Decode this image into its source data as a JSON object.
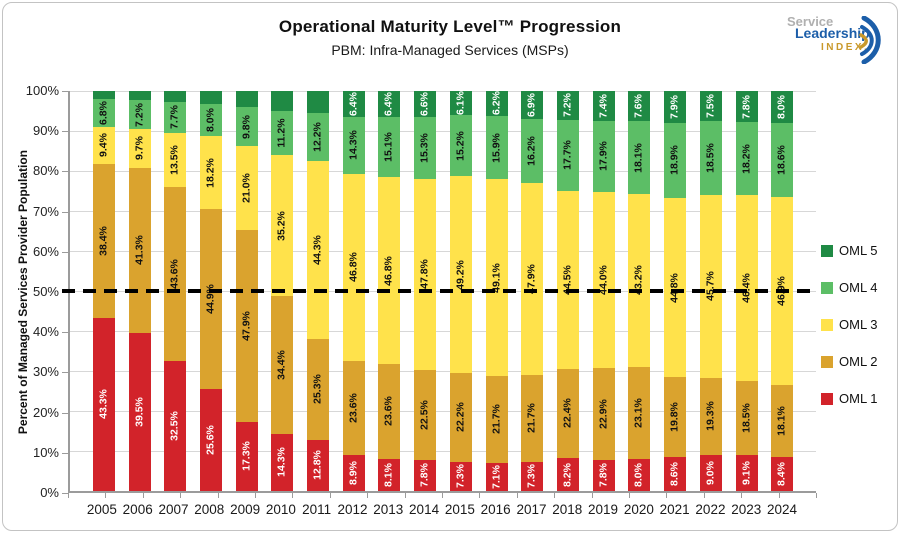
{
  "logo": {
    "service": "Service",
    "leadership": "Leadership",
    "index": "INDEX."
  },
  "chart_data": {
    "type": "bar",
    "stacked": true,
    "orientation": "vertical",
    "title": "Operational Maturity Level™ Progression",
    "subtitle": "PBM: Infra-Managed Services (MSPs)",
    "ylabel": "Percent of Managed Services Provider Population",
    "ylim": [
      0,
      100
    ],
    "grid": true,
    "yticks": [
      0,
      10,
      20,
      30,
      40,
      50,
      60,
      70,
      80,
      90,
      100
    ],
    "ytick_labels": [
      "0%",
      "10%",
      "20%",
      "30%",
      "40%",
      "50%",
      "60%",
      "70%",
      "80%",
      "90%",
      "100%"
    ],
    "reference_line": {
      "value": 50,
      "style": "dashed",
      "color": "#000000"
    },
    "legend_position": "right",
    "legend_order": [
      "OML 5",
      "OML 4",
      "OML 3",
      "OML 2",
      "OML 1"
    ],
    "categories": [
      "2005",
      "2006",
      "2007",
      "2008",
      "2009",
      "2010",
      "2011",
      "2012",
      "2013",
      "2014",
      "2015",
      "2016",
      "2017",
      "2018",
      "2019",
      "2020",
      "2021",
      "2022",
      "2023",
      "2024"
    ],
    "series": [
      {
        "name": "OML 1",
        "color": "#d2232a",
        "label_color": "#ffffff",
        "values": [
          43.3,
          39.5,
          32.5,
          25.6,
          17.3,
          14.3,
          12.8,
          8.9,
          8.1,
          7.8,
          7.3,
          7.1,
          7.3,
          8.2,
          7.8,
          8.0,
          8.6,
          9.0,
          9.1,
          8.4
        ],
        "labels": [
          "43.3%",
          "39.5%",
          "32.5%",
          "25.6%",
          "17.3%",
          "14.3%",
          "12.8%",
          "8.9%",
          "8.1%",
          "7.8%",
          "7.3%",
          "7.1%",
          "7.3%",
          "8.2%",
          "7.8%",
          "8.0%",
          "8.6%",
          "9.0%",
          "9.1%",
          "8.4%"
        ]
      },
      {
        "name": "OML 2",
        "color": "#daa32e",
        "label_color": "#111111",
        "values": [
          38.4,
          41.3,
          43.6,
          44.9,
          47.9,
          34.4,
          25.3,
          23.6,
          23.6,
          22.5,
          22.2,
          21.7,
          21.7,
          22.4,
          22.9,
          23.1,
          19.8,
          19.3,
          18.5,
          18.1
        ],
        "labels": [
          "38.4%",
          "41.3%",
          "43.6%",
          "44.9%",
          "47.9%",
          "34.4%",
          "25.3%",
          "23.6%",
          "23.6%",
          "22.5%",
          "22.2%",
          "21.7%",
          "21.7%",
          "22.4%",
          "22.9%",
          "23.1%",
          "19.8%",
          "19.3%",
          "18.5%",
          "18.1%"
        ]
      },
      {
        "name": "OML 3",
        "color": "#ffe24b",
        "label_color": "#111111",
        "values": [
          9.4,
          9.7,
          13.5,
          18.2,
          21.0,
          35.2,
          44.3,
          46.8,
          46.8,
          47.8,
          49.2,
          49.1,
          47.9,
          44.5,
          44.0,
          43.2,
          44.8,
          45.7,
          46.4,
          46.9
        ],
        "labels": [
          "9.4%",
          "9.7%",
          "13.5%",
          "18.2%",
          "21.0%",
          "35.2%",
          "44.3%",
          "46.8%",
          "46.8%",
          "47.8%",
          "49.2%",
          "49.1%",
          "47.9%",
          "44.5%",
          "44.0%",
          "43.2%",
          "44.8%",
          "45.7%",
          "46.4%",
          "46.9%"
        ]
      },
      {
        "name": "OML 4",
        "color": "#5cbe66",
        "label_color": "#111111",
        "values": [
          6.8,
          7.2,
          7.7,
          8.0,
          9.8,
          11.2,
          12.2,
          14.3,
          15.1,
          15.3,
          15.2,
          15.9,
          16.2,
          17.7,
          17.9,
          18.1,
          18.9,
          18.5,
          18.2,
          18.6
        ],
        "labels": [
          "6.8%",
          "7.2%",
          "7.7%",
          "8.0%",
          "9.8%",
          "11.2%",
          "12.2%",
          "14.3%",
          "15.1%",
          "15.3%",
          "15.2%",
          "15.9%",
          "16.2%",
          "17.7%",
          "17.9%",
          "18.1%",
          "18.9%",
          "18.5%",
          "18.2%",
          "18.6%"
        ]
      },
      {
        "name": "OML 5",
        "color": "#1f8a44",
        "label_color": "#ffffff",
        "values": [
          2.1,
          2.3,
          2.7,
          3.3,
          4.0,
          4.9,
          5.4,
          6.4,
          6.4,
          6.6,
          6.1,
          6.2,
          6.9,
          7.2,
          7.4,
          7.6,
          7.9,
          7.5,
          7.8,
          8.0
        ],
        "labels": [
          "",
          "",
          "",
          "",
          "",
          "",
          "",
          "6.4%",
          "6.4%",
          "6.6%",
          "6.1%",
          "6.2%",
          "6.9%",
          "7.2%",
          "7.4%",
          "7.6%",
          "7.9%",
          "7.5%",
          "7.8%",
          "8.0%"
        ]
      }
    ]
  }
}
